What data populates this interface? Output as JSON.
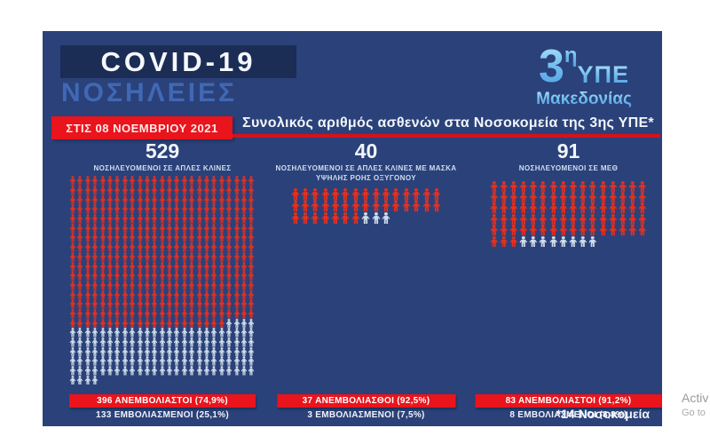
{
  "page": {
    "title_line1": "COVID-19",
    "title_line2": "ΝΟΣΗΛΕΙΕΣ",
    "date_banner": "ΣΤΙΣ 08 ΝΟΕΜΒΡΙΟΥ 2021",
    "header": "Συνολικός αριθμός ασθενών στα Νοσοκομεία της 3ης ΥΠΕ*",
    "footnote": "*14 Νοσοκομεία"
  },
  "logo": {
    "line1": "3",
    "line1_sup": "η",
    "line2": "ΥΠΕ",
    "line3": "Μακεδονίας"
  },
  "watermark": {
    "line1": "Activ",
    "line2": "Go to"
  },
  "colors": {
    "panel": "#2b4179",
    "title_box": "#1b2c55",
    "accent_red": "#e9141c",
    "icon_unvaccinated": "#e5301f",
    "icon_vaccinated": "#cfdcea",
    "logo_blue": "#7cc4ef"
  },
  "chart_data": {
    "type": "pictogram",
    "title": "Συνολικός αριθμός ασθενών στα Νοσοκομεία της 3ης ΥΠΕ*",
    "date": "08 ΝΟΕΜΒΡΙΟΥ 2021",
    "legend": {
      "red_icon": "ΑΝΕΜΒΟΛΙΑΣΤΟΙ",
      "light_icon": "ΕΜΒΟΛΙΑΣΜΕΝΟΙ"
    },
    "groups": [
      {
        "label": "ΝΟΣΗΛΕΥΟΜΕΝΟΙ ΣΕ ΑΠΛΕΣ ΚΛΙΝΕΣ",
        "total": 529,
        "unvaccinated": 396,
        "unvaccinated_pct": "74,9%",
        "vaccinated": 133,
        "vaccinated_pct": "25,1%",
        "per_row": 25,
        "banner_unvaccinated": "396 ΑΝΕΜΒΟΛΙΑΣΤΟΙ (74,9%)",
        "banner_vaccinated": "133 ΕΜΒΟΛΙΑΣΜΕΝΟΙ (25,1%)"
      },
      {
        "label": "ΝΟΣΗΛΕΥΟΜΕΝΟΙ ΣΕ ΑΠΛΕΣ ΚΛΙΝΕΣ ΜΕ ΜΑΣΚΑ ΥΨΗΛΗΣ ΡΟΗΣ ΟΞΥΓΟΝΟΥ",
        "total": 40,
        "unvaccinated": 37,
        "unvaccinated_pct": "92,5%",
        "vaccinated": 3,
        "vaccinated_pct": "7,5%",
        "per_row": 15,
        "banner_unvaccinated": "37 ΑΝΕΜΒΟΛΙΑΣΘΟΙ (92,5%)",
        "banner_vaccinated": "3 ΕΜΒΟΛΙΑΣΜΕΝΟΙ (7,5%)"
      },
      {
        "label": "ΝΟΣΗΛΕΥΟΜΕΝΟΙ ΣΕ ΜΕΘ",
        "total": 91,
        "unvaccinated": 83,
        "unvaccinated_pct": "91,2%",
        "vaccinated": 8,
        "vaccinated_pct": "8,8%",
        "per_row": 16,
        "banner_unvaccinated": "83  ΑΝΕΜΒΟΛΙΑΣΤΟΙ (91,2%)",
        "banner_vaccinated": "8 ΕΜΒΟΛΙΑΣΜΕΝΟΙ (8,8%)"
      }
    ]
  }
}
